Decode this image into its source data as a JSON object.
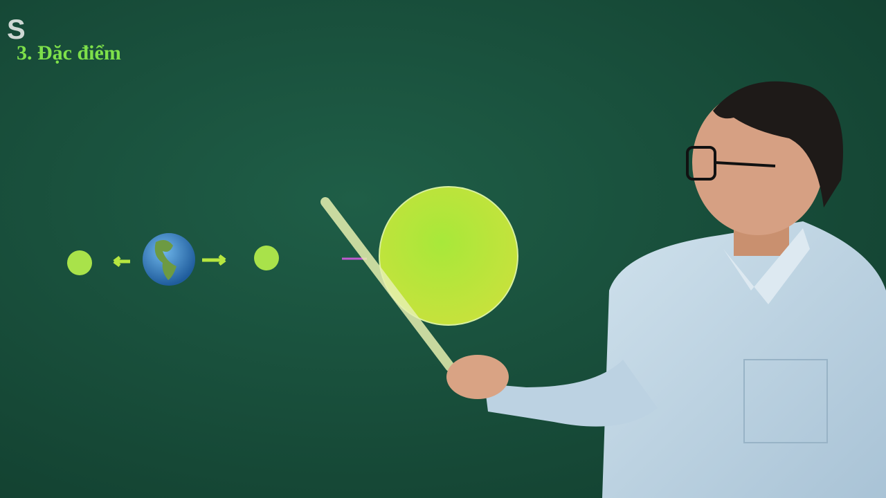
{
  "logo": {
    "text": "S"
  },
  "header": {
    "title": "3. Đặc điểm"
  }
}
